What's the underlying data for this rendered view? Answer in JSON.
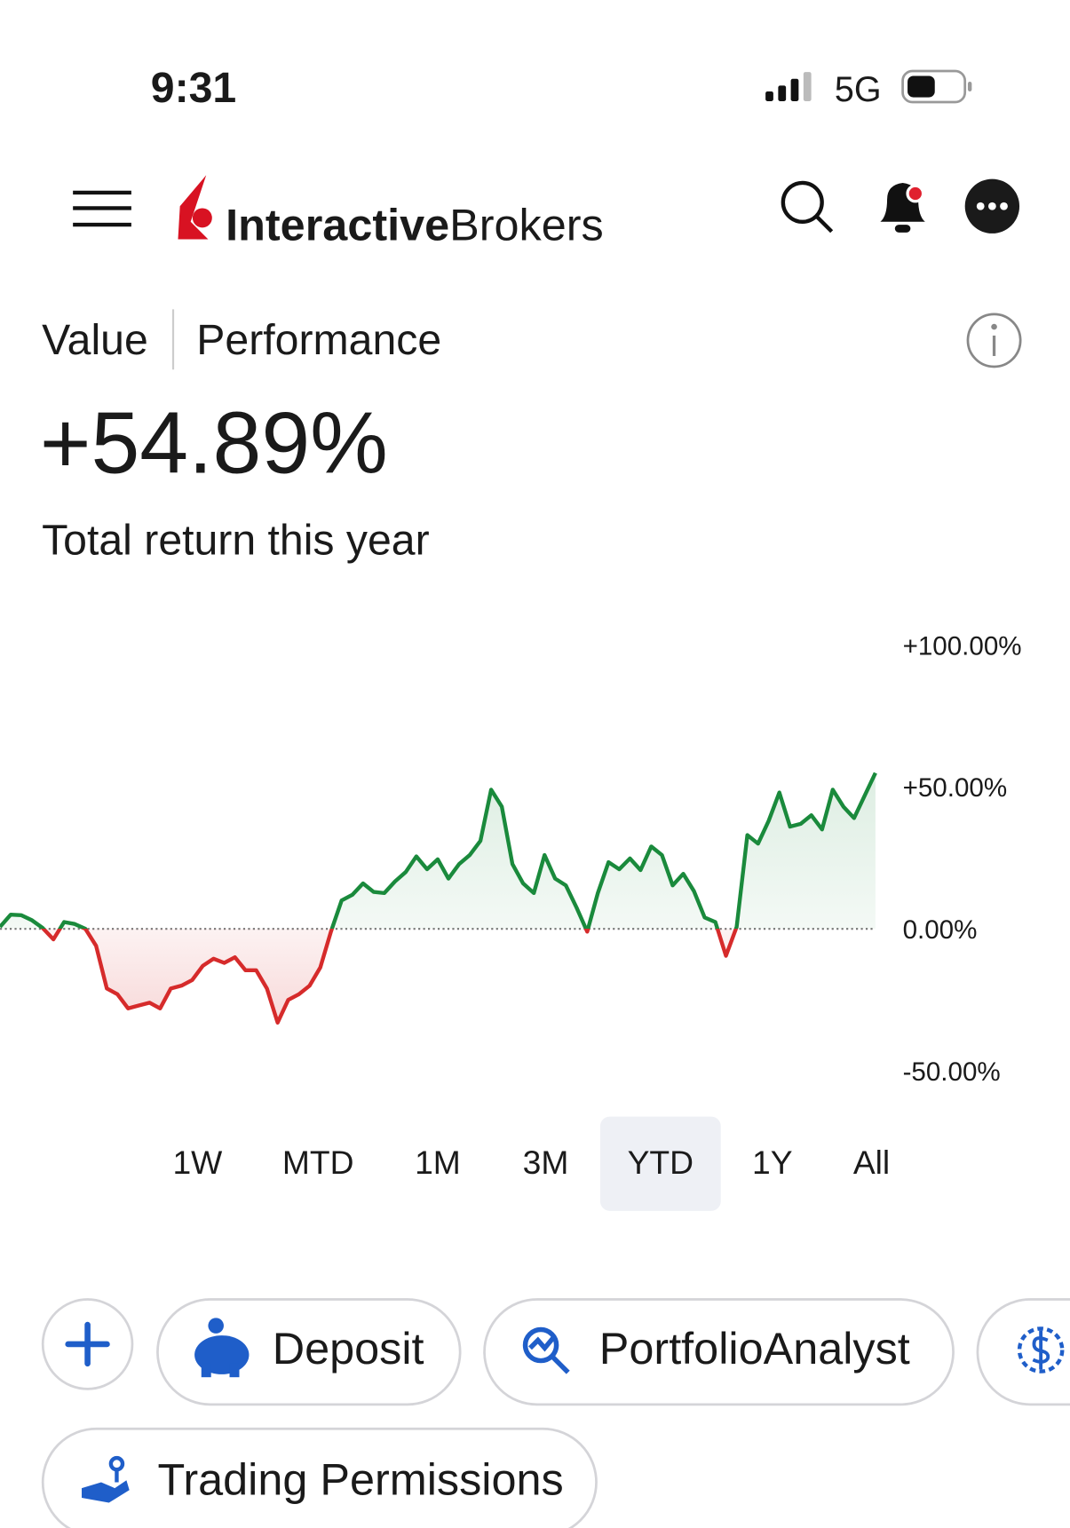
{
  "status_bar": {
    "time": "9:31",
    "network": "5G"
  },
  "header": {
    "brand_bold": "Interactive",
    "brand_regular": "Brokers"
  },
  "tabs": [
    {
      "label": "Value",
      "active": false
    },
    {
      "label": "Performance",
      "active": true
    }
  ],
  "headline": {
    "value": "+54.89%",
    "caption": "Total return this year"
  },
  "chart_data": {
    "type": "line",
    "values": [
      0.7,
      5,
      4.8,
      3,
      0.3,
      -3.7,
      2.4,
      1.7,
      0,
      -6,
      -21,
      -23,
      -28,
      -27,
      -26,
      -28,
      -21,
      -20,
      -18,
      -13,
      -10.5,
      -12,
      -10,
      -14.6,
      -14.6,
      -21,
      -33,
      -25,
      -23,
      -20,
      -13.6,
      -1,
      10,
      12,
      16,
      13,
      12.6,
      16.7,
      20,
      25.5,
      21,
      24.5,
      17.7,
      22.8,
      26,
      31,
      49,
      43,
      22.8,
      16,
      12.6,
      26,
      17.7,
      15.3,
      7.5,
      -1,
      12.6,
      23.5,
      21,
      24.8,
      20.7,
      29,
      26,
      15.3,
      19.4,
      13.3,
      4,
      2.4,
      -9.5,
      0.7,
      33,
      30,
      38,
      48,
      36,
      37,
      40,
      35,
      49,
      43,
      39,
      47,
      54.89
    ],
    "positive_color": "#1a8a3c",
    "negative_color": "#d62b2b",
    "ylim": [
      -50,
      100
    ],
    "yticks": [
      {
        "value": 100,
        "label": "+100.00%"
      },
      {
        "value": 50,
        "label": "+50.00%"
      },
      {
        "value": 0,
        "label": "0.00%"
      },
      {
        "value": -50,
        "label": "-50.00%"
      }
    ],
    "zero_line": true
  },
  "range_selector": {
    "options": [
      "1W",
      "MTD",
      "1M",
      "3M",
      "YTD",
      "1Y",
      "All"
    ],
    "selected": "YTD"
  },
  "actions": [
    "Deposit",
    "PortfolioAnalyst",
    "Trading Permissions"
  ]
}
